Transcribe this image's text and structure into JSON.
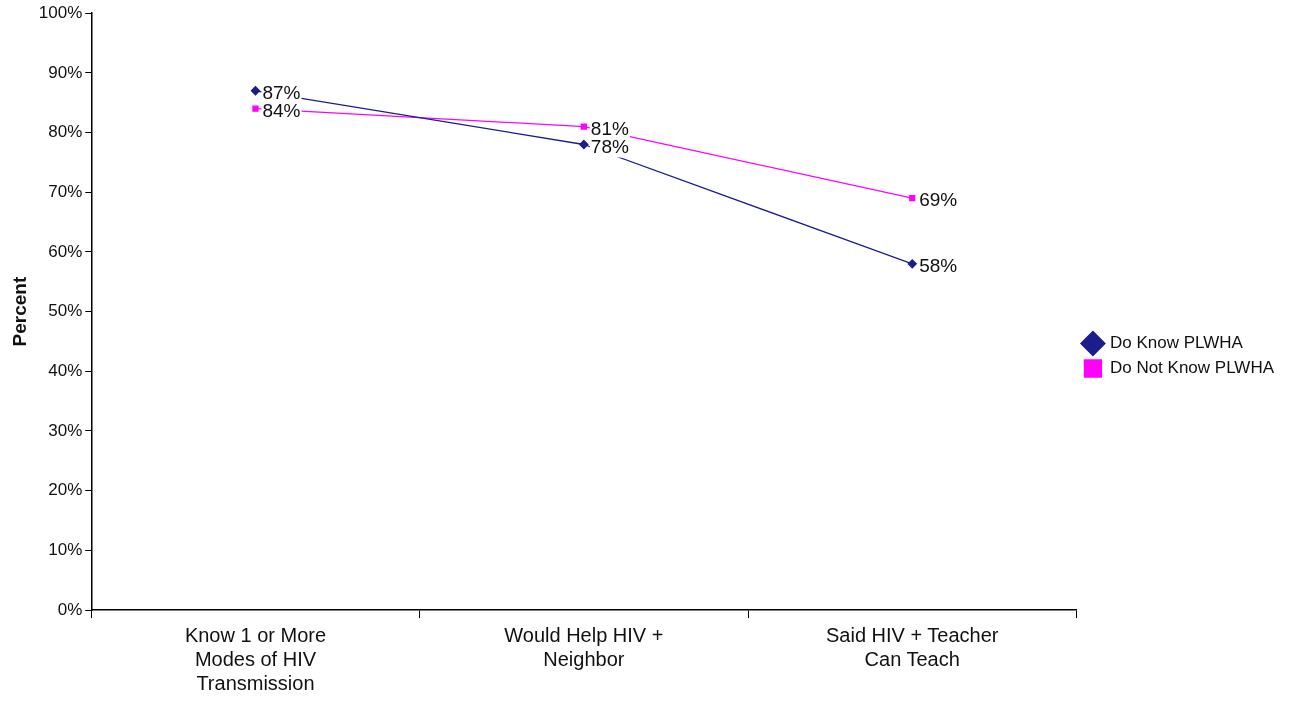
{
  "chart_data": {
    "type": "line",
    "ylabel": "Percent",
    "categories": [
      "Know 1 or More Modes of HIV Transmission",
      "Would Help HIV + Neighbor",
      "Said HIV + Teacher Can Teach"
    ],
    "series": [
      {
        "name": "Do Know PLWHA",
        "color": "#1c1c8c",
        "values": [
          87,
          78,
          58
        ],
        "marker": "diamond",
        "value_labels": [
          "87%",
          "78%",
          "58%"
        ]
      },
      {
        "name": "Do Not Know PLWHA",
        "color": "#ff00ff",
        "values": [
          84,
          81,
          69
        ],
        "marker": "square",
        "value_labels": [
          "84%",
          "81%",
          "69%"
        ]
      }
    ],
    "ylim": [
      0,
      100
    ],
    "yticks": [
      {
        "value": 0,
        "label": "0%"
      },
      {
        "value": 10,
        "label": "10%"
      },
      {
        "value": 20,
        "label": "20%"
      },
      {
        "value": 30,
        "label": "30%"
      },
      {
        "value": 40,
        "label": "40%"
      },
      {
        "value": 50,
        "label": "50%"
      },
      {
        "value": 60,
        "label": "60%"
      },
      {
        "value": 70,
        "label": "70%"
      },
      {
        "value": 80,
        "label": "80%"
      },
      {
        "value": 90,
        "label": "90%"
      },
      {
        "value": 100,
        "label": "100%"
      }
    ],
    "grid": false,
    "legend": "right",
    "line_style": "solid"
  }
}
